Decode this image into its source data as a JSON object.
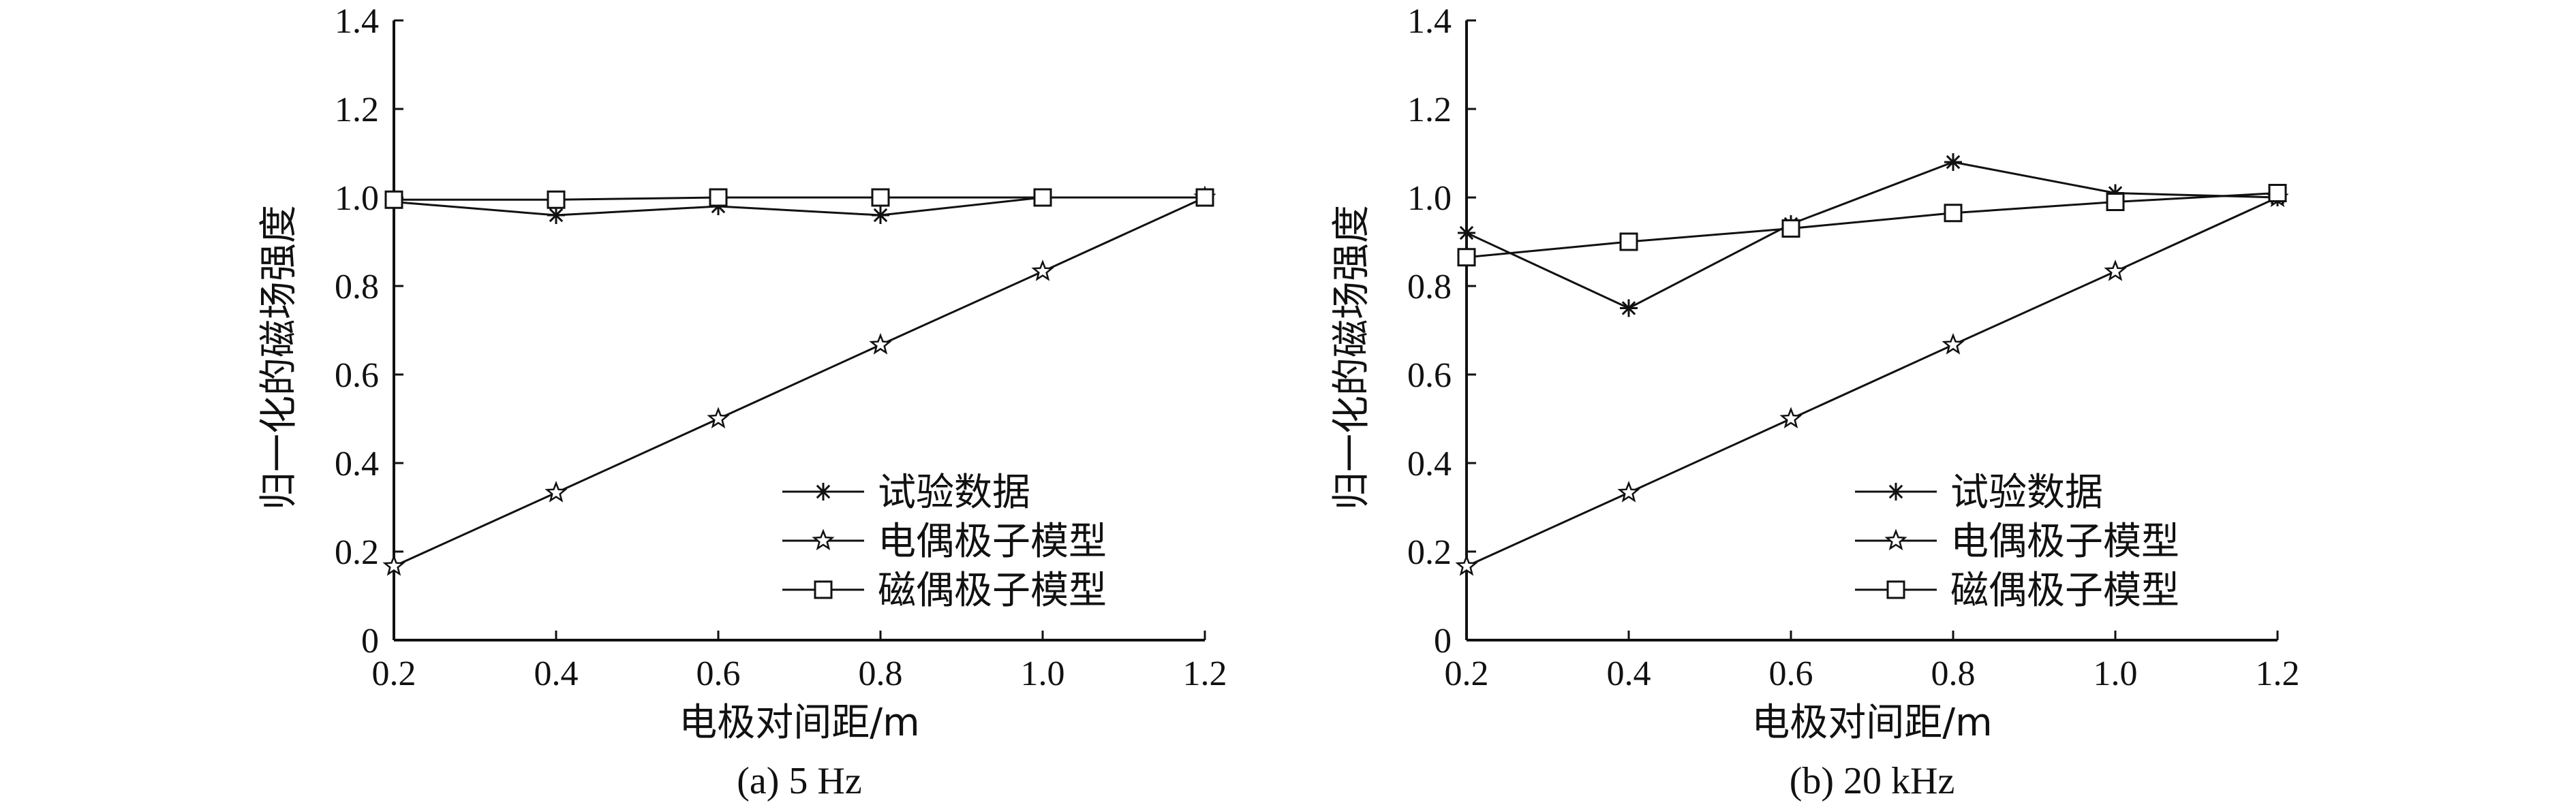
{
  "chart_data": [
    {
      "type": "line",
      "caption": "(a) 5 Hz",
      "xlabel": "电极对间距/m",
      "ylabel": "归一化的磁场强度",
      "x": [
        0.2,
        0.4,
        0.6,
        0.8,
        1.0,
        1.2
      ],
      "xticks": [
        "0.2",
        "0.4",
        "0.6",
        "0.8",
        "1.0",
        "1.2"
      ],
      "yticks": [
        "0",
        "0.2",
        "0.4",
        "0.6",
        "0.8",
        "1.0",
        "1.2",
        "1.4"
      ],
      "xlim": [
        0.2,
        1.2
      ],
      "ylim": [
        0,
        1.4
      ],
      "grid": false,
      "legend_position": "bottom-right",
      "series": [
        {
          "name": "试验数据",
          "marker": "asterisk",
          "values": [
            0.99,
            0.96,
            0.98,
            0.96,
            1.0,
            1.0
          ]
        },
        {
          "name": "电偶极子模型",
          "marker": "star",
          "values": [
            0.167,
            0.333,
            0.5,
            0.667,
            0.833,
            1.0
          ]
        },
        {
          "name": "磁偶极子模型",
          "marker": "square",
          "values": [
            0.995,
            0.995,
            1.0,
            1.0,
            1.0,
            1.0
          ]
        }
      ]
    },
    {
      "type": "line",
      "caption": "(b) 20 kHz",
      "xlabel": "电极对间距/m",
      "ylabel": "归一化的磁场强度",
      "x": [
        0.2,
        0.4,
        0.6,
        0.8,
        1.0,
        1.2
      ],
      "xticks": [
        "0.2",
        "0.4",
        "0.6",
        "0.8",
        "1.0",
        "1.2"
      ],
      "yticks": [
        "0",
        "0.2",
        "0.4",
        "0.6",
        "0.8",
        "1.0",
        "1.2",
        "1.4"
      ],
      "xlim": [
        0.2,
        1.2
      ],
      "ylim": [
        0,
        1.4
      ],
      "grid": false,
      "legend_position": "bottom-right",
      "series": [
        {
          "name": "试验数据",
          "marker": "asterisk",
          "values": [
            0.92,
            0.75,
            0.94,
            1.08,
            1.01,
            1.0
          ]
        },
        {
          "name": "电偶极子模型",
          "marker": "star",
          "values": [
            0.167,
            0.333,
            0.5,
            0.667,
            0.833,
            1.0
          ]
        },
        {
          "name": "磁偶极子模型",
          "marker": "square",
          "values": [
            0.865,
            0.9,
            0.93,
            0.965,
            0.99,
            1.01
          ]
        }
      ]
    }
  ]
}
